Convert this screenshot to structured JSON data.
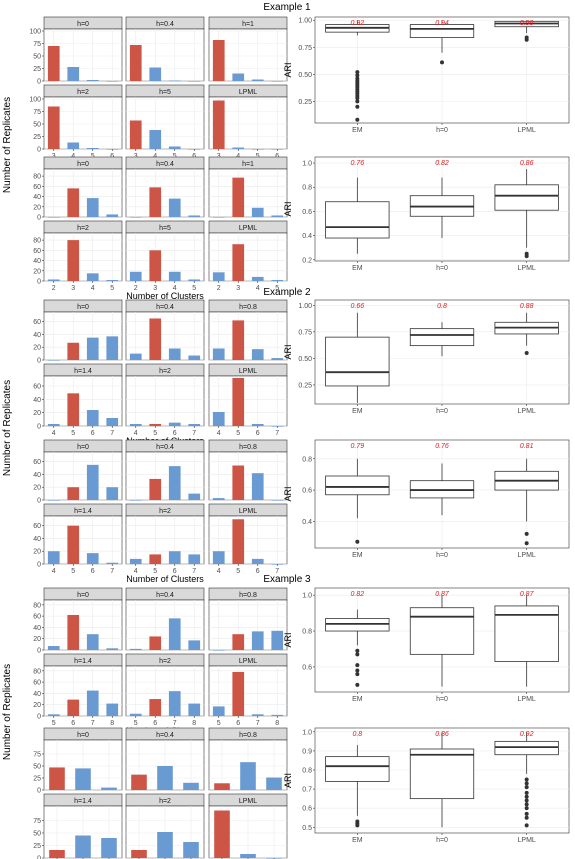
{
  "figure": {
    "titles": [
      "Example 1",
      "Example 2",
      "Example 3"
    ],
    "y_label": "Number of Replicates",
    "x_label": "Number of Clusters",
    "ari_label": "ARI",
    "colors": {
      "correct": "#cd5545",
      "other": "#6a9ad2",
      "strip": "#d9d9d9",
      "ann": "#e41a1c"
    }
  },
  "chart_data": [
    {
      "type": "bar",
      "example": "Example 1",
      "panel": "bars-1a",
      "facets": [
        "h=0",
        "h=0.4",
        "h=1",
        "h=2",
        "h=5",
        "LPML"
      ],
      "categories": [
        "3",
        "4",
        "5",
        "6"
      ],
      "correct": "3",
      "y_ticks": [
        0,
        25,
        50,
        75,
        100
      ],
      "ylim": [
        0,
        100
      ],
      "values": [
        [
          70,
          28,
          2,
          0
        ],
        [
          72,
          27,
          1,
          0
        ],
        [
          82,
          15,
          3,
          0
        ],
        [
          85,
          13,
          2,
          0
        ],
        [
          57,
          38,
          5,
          0
        ],
        [
          97,
          3,
          0,
          0
        ]
      ]
    },
    {
      "type": "boxplot",
      "example": "Example 1",
      "panel": "box-1a",
      "ylim": [
        0.05,
        1.03
      ],
      "y_ticks": [
        0.25,
        0.5,
        0.75,
        1.0
      ],
      "y_tick_labels": [
        "0.25",
        "0.50",
        "0.75",
        "1.00"
      ],
      "groups": [
        {
          "label": "EM",
          "annotation": "0.92",
          "q1": 0.89,
          "median": 0.93,
          "q3": 0.96,
          "lo": 0.86,
          "hi": 1.0,
          "outliers": [
            0.52,
            0.49,
            0.46,
            0.44,
            0.42,
            0.4,
            0.38,
            0.36,
            0.34,
            0.32,
            0.3,
            0.28,
            0.25,
            0.2,
            0.08
          ]
        },
        {
          "label": "h=0",
          "annotation": "0.94",
          "q1": 0.84,
          "median": 0.92,
          "q3": 0.96,
          "lo": 0.7,
          "hi": 1.0,
          "outliers": [
            0.61
          ]
        },
        {
          "label": "LPML",
          "annotation": "0.99",
          "q1": 0.94,
          "median": 0.97,
          "q3": 0.99,
          "lo": 0.88,
          "hi": 1.0,
          "outliers": [
            0.84,
            0.82
          ]
        }
      ]
    },
    {
      "type": "bar",
      "example": "Example 1",
      "panel": "bars-1b",
      "facets": [
        "h=0",
        "h=0.4",
        "h=1",
        "h=2",
        "h=5",
        "LPML"
      ],
      "categories": [
        "2",
        "3",
        "4",
        "5"
      ],
      "correct": "3",
      "y_ticks": [
        0,
        20,
        40,
        60,
        80
      ],
      "ylim": [
        0,
        90
      ],
      "values": [
        [
          0,
          56,
          37,
          5
        ],
        [
          0,
          58,
          36,
          3
        ],
        [
          0,
          77,
          18,
          3
        ],
        [
          3,
          80,
          15,
          2
        ],
        [
          18,
          60,
          18,
          3
        ],
        [
          17,
          72,
          8,
          2
        ]
      ]
    },
    {
      "type": "boxplot",
      "example": "Example 1",
      "panel": "box-1b",
      "ylim": [
        0.19,
        1.05
      ],
      "y_ticks": [
        0.2,
        0.4,
        0.6,
        0.8,
        1.0
      ],
      "y_tick_labels": [
        "0.2",
        "0.4",
        "0.6",
        "0.8",
        "1.0"
      ],
      "groups": [
        {
          "label": "EM",
          "annotation": "0.76",
          "q1": 0.38,
          "median": 0.47,
          "q3": 0.68,
          "lo": 0.25,
          "hi": 0.88,
          "outliers": []
        },
        {
          "label": "h=0",
          "annotation": "0.82",
          "q1": 0.56,
          "median": 0.64,
          "q3": 0.73,
          "lo": 0.38,
          "hi": 0.88,
          "outliers": []
        },
        {
          "label": "LPML",
          "annotation": "0.86",
          "q1": 0.61,
          "median": 0.73,
          "q3": 0.82,
          "lo": 0.3,
          "hi": 0.95,
          "outliers": [
            0.25,
            0.23
          ]
        }
      ]
    },
    {
      "type": "bar",
      "example": "Example 2",
      "panel": "bars-2a",
      "facets": [
        "h=0",
        "h=0.4",
        "h=0.8",
        "h=1.4",
        "h=2",
        "LPML"
      ],
      "categories": [
        "4",
        "5",
        "6",
        "7"
      ],
      "correct": "5",
      "y_ticks": [
        0,
        20,
        40,
        60
      ],
      "ylim": [
        0,
        72
      ],
      "values": [
        [
          0,
          27,
          35,
          37
        ],
        [
          10,
          65,
          18,
          7
        ],
        [
          18,
          62,
          17,
          3
        ],
        [
          3,
          49,
          24,
          12
        ],
        [
          3,
          3,
          5,
          3
        ],
        [
          21,
          72,
          3,
          0
        ]
      ]
    },
    {
      "type": "boxplot",
      "example": "Example 2",
      "panel": "box-2a",
      "ylim": [
        0.07,
        1.05
      ],
      "y_ticks": [
        0.25,
        0.5,
        0.75,
        1.0
      ],
      "y_tick_labels": [
        "0.25",
        "0.50",
        "0.75",
        "1.00"
      ],
      "groups": [
        {
          "label": "EM",
          "annotation": "0.66",
          "q1": 0.24,
          "median": 0.37,
          "q3": 0.7,
          "lo": 0.08,
          "hi": 0.93,
          "outliers": []
        },
        {
          "label": "h=0",
          "annotation": "0.8",
          "q1": 0.62,
          "median": 0.72,
          "q3": 0.78,
          "lo": 0.52,
          "hi": 0.84,
          "outliers": []
        },
        {
          "label": "LPML",
          "annotation": "0.88",
          "q1": 0.73,
          "median": 0.79,
          "q3": 0.84,
          "lo": 0.62,
          "hi": 0.93,
          "outliers": [
            0.55
          ]
        }
      ]
    },
    {
      "type": "bar",
      "example": "Example 2",
      "panel": "bars-2b",
      "facets": [
        "h=0",
        "h=0.4",
        "h=0.8",
        "h=1.4",
        "h=2",
        "LPML"
      ],
      "categories": [
        "4",
        "5",
        "6",
        "7"
      ],
      "correct": "5",
      "y_ticks": [
        0,
        20,
        40,
        60
      ],
      "ylim": [
        0,
        72
      ],
      "values": [
        [
          0,
          20,
          55,
          20
        ],
        [
          0,
          33,
          53,
          10
        ],
        [
          3,
          54,
          42,
          0
        ],
        [
          20,
          60,
          17,
          2
        ],
        [
          8,
          15,
          20,
          15
        ],
        [
          20,
          70,
          8,
          0
        ]
      ]
    },
    {
      "type": "boxplot",
      "example": "Example 2",
      "panel": "box-2b",
      "ylim": [
        0.23,
        0.92
      ],
      "y_ticks": [
        0.4,
        0.6,
        0.8
      ],
      "y_tick_labels": [
        "0.4",
        "0.6",
        "0.8"
      ],
      "groups": [
        {
          "label": "EM",
          "annotation": "0.79",
          "q1": 0.57,
          "median": 0.62,
          "q3": 0.69,
          "lo": 0.42,
          "hi": 0.8,
          "outliers": [
            0.27
          ]
        },
        {
          "label": "h=0",
          "annotation": "0.76",
          "q1": 0.55,
          "median": 0.6,
          "q3": 0.66,
          "lo": 0.44,
          "hi": 0.77,
          "outliers": []
        },
        {
          "label": "LPML",
          "annotation": "0.81",
          "q1": 0.6,
          "median": 0.66,
          "q3": 0.72,
          "lo": 0.4,
          "hi": 0.8,
          "outliers": [
            0.32,
            0.26
          ]
        }
      ]
    },
    {
      "type": "bar",
      "example": "Example 3",
      "panel": "bars-3a",
      "facets": [
        "h=0",
        "h=0.4",
        "h=0.8",
        "h=1.4",
        "h=2",
        "LPML"
      ],
      "categories": [
        "5",
        "6",
        "7",
        "8"
      ],
      "correct": "6",
      "y_ticks": [
        0,
        20,
        40,
        60,
        80
      ],
      "ylim": [
        0,
        85
      ],
      "values": [
        [
          7,
          62,
          28,
          3
        ],
        [
          2,
          24,
          56,
          17
        ],
        [
          0,
          28,
          33,
          34
        ],
        [
          3,
          29,
          45,
          22
        ],
        [
          4,
          30,
          44,
          22
        ],
        [
          17,
          78,
          3,
          2
        ]
      ]
    },
    {
      "type": "boxplot",
      "example": "Example 3",
      "panel": "box-3a",
      "ylim": [
        0.46,
        1.04
      ],
      "y_ticks": [
        0.6,
        0.8,
        1.0
      ],
      "y_tick_labels": [
        "0.6",
        "0.8",
        "1.0"
      ],
      "groups": [
        {
          "label": "EM",
          "annotation": "0.82",
          "q1": 0.8,
          "median": 0.84,
          "q3": 0.87,
          "lo": 0.72,
          "hi": 0.92,
          "outliers": [
            0.69,
            0.67,
            0.61,
            0.58,
            0.56,
            0.5
          ]
        },
        {
          "label": "h=0",
          "annotation": "0.87",
          "q1": 0.67,
          "median": 0.88,
          "q3": 0.93,
          "lo": 0.49,
          "hi": 1.0,
          "outliers": []
        },
        {
          "label": "LPML",
          "annotation": "0.87",
          "q1": 0.63,
          "median": 0.89,
          "q3": 0.94,
          "lo": 0.49,
          "hi": 1.0,
          "outliers": []
        }
      ]
    },
    {
      "type": "bar",
      "example": "Example 3",
      "panel": "bars-3b",
      "facets": [
        "h=0",
        "h=0.4",
        "h=0.8",
        "h=1.4",
        "h=2",
        "LPML"
      ],
      "categories": [
        "6",
        "7",
        "8"
      ],
      "correct": "6",
      "y_ticks": [
        0,
        25,
        50,
        75
      ],
      "ylim": [
        0,
        100
      ],
      "values": [
        [
          47,
          45,
          5
        ],
        [
          32,
          50,
          15
        ],
        [
          14,
          58,
          26
        ],
        [
          16,
          45,
          40
        ],
        [
          16,
          52,
          32
        ],
        [
          95,
          8,
          0
        ]
      ]
    },
    {
      "type": "boxplot",
      "example": "Example 3",
      "panel": "box-3b",
      "ylim": [
        0.47,
        1.02
      ],
      "y_ticks": [
        0.5,
        0.6,
        0.7,
        0.8,
        0.9,
        1.0
      ],
      "y_tick_labels": [
        "0.5",
        "0.6",
        "0.7",
        "0.8",
        "0.9",
        "1.0"
      ],
      "groups": [
        {
          "label": "EM",
          "annotation": "0.8",
          "q1": 0.74,
          "median": 0.82,
          "q3": 0.87,
          "lo": 0.56,
          "hi": 0.93,
          "outliers": [
            0.53,
            0.52,
            0.51
          ]
        },
        {
          "label": "h=0",
          "annotation": "0.86",
          "q1": 0.65,
          "median": 0.88,
          "q3": 0.91,
          "lo": 0.5,
          "hi": 1.0,
          "outliers": []
        },
        {
          "label": "LPML",
          "annotation": "0.92",
          "q1": 0.88,
          "median": 0.92,
          "q3": 0.95,
          "lo": 0.78,
          "hi": 1.0,
          "outliers": [
            0.75,
            0.73,
            0.71,
            0.68,
            0.66,
            0.64,
            0.62,
            0.6,
            0.57,
            0.55,
            0.51
          ]
        }
      ]
    }
  ]
}
